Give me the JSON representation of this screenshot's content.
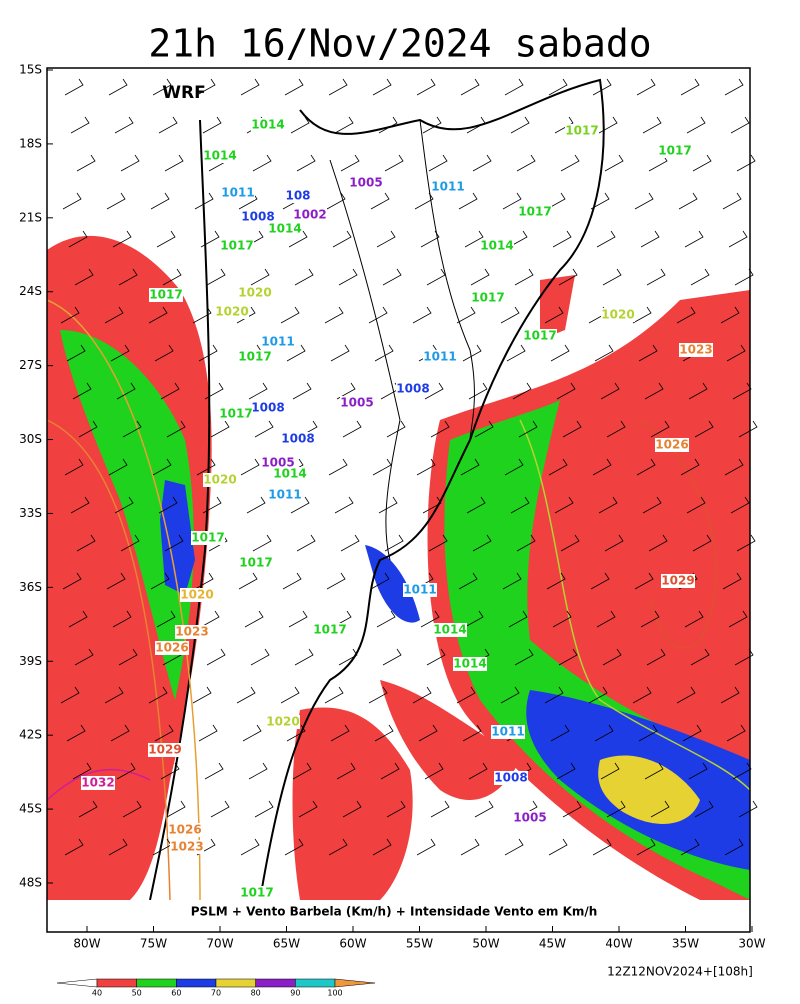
{
  "title": "21h 16/Nov/2024 sabado",
  "model": "WRF",
  "caption": "PSLM + Vento Barbela (Km/h) + Intensidade Vento em Km/h",
  "run": "12Z12NOV2024+[108h]",
  "lat_labels": [
    "15S",
    "18S",
    "21S",
    "24S",
    "27S",
    "30S",
    "33S",
    "36S",
    "39S",
    "42S",
    "45S",
    "48S"
  ],
  "lon_labels": [
    "80W",
    "75W",
    "70W",
    "65W",
    "60W",
    "55W",
    "50W",
    "45W",
    "40W",
    "35W",
    "30W"
  ],
  "isobar_labels": [
    "1014",
    "1014",
    "1011",
    "108",
    "1008",
    "1002",
    "1014",
    "1005",
    "1011",
    "1017",
    "1017",
    "1017",
    "1014",
    "1017",
    "1017",
    "1020",
    "1020",
    "1017",
    "1017",
    "1011",
    "1017",
    "1020",
    "1023",
    "1011",
    "1008",
    "1005",
    "1008",
    "1017",
    "1008",
    "1026",
    "1005",
    "1014",
    "1020",
    "1011",
    "1017",
    "1017",
    "1011",
    "1029",
    "1020",
    "1023",
    "1017",
    "1014",
    "1026",
    "1014",
    "1020",
    "1011",
    "1029",
    "1032",
    "1008",
    "1005",
    "1026",
    "1023",
    "1017"
  ],
  "colorbar": {
    "ticks": [
      40,
      50,
      60,
      70,
      80,
      90,
      100
    ],
    "colors": [
      "#f04040",
      "#1ed21e",
      "#1e3ce6",
      "#e6d232",
      "#8c1ec8",
      "#1ec8c8"
    ],
    "under_color": "#ffffff",
    "over_color": "#f0963c"
  }
}
